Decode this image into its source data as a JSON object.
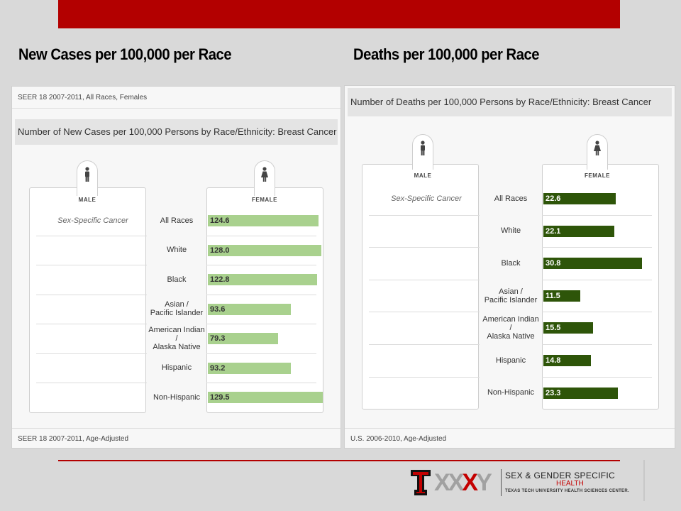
{
  "titles": {
    "left": "New Cases per 100,000 per Race",
    "right": "Deaths per 100,000  per Race"
  },
  "left_panel": {
    "source_top": "SEER 18 2007-2011, All Races, Females",
    "chart_title": "Number of New Cases per 100,000 Persons by Race/Ethnicity: Breast Cancer",
    "source_bottom": "SEER 18 2007-2011, Age-Adjusted",
    "male_label": "MALE",
    "female_label": "FEMALE",
    "sex_specific": "Sex-Specific Cancer"
  },
  "right_panel": {
    "chart_title": "Number of Deaths per 100,000 Persons by Race/Ethnicity: Breast Cancer",
    "source_bottom": "U.S. 2006-2010, Age-Adjusted",
    "male_label": "MALE",
    "female_label": "FEMALE",
    "sex_specific": "Sex-Specific Cancer"
  },
  "chart_data": [
    {
      "type": "bar",
      "orientation": "horizontal",
      "title": "Number of New Cases per 100,000 Persons by Race/Ethnicity: Breast Cancer",
      "categories": [
        "All Races",
        "White",
        "Black",
        "Asian /\nPacific Islander",
        "American Indian /\nAlaska Native",
        "Hispanic",
        "Non-Hispanic"
      ],
      "series": [
        {
          "name": "FEMALE",
          "values": [
            124.6,
            128.0,
            122.8,
            93.6,
            79.3,
            93.2,
            129.5
          ]
        }
      ],
      "value_labels": [
        "124.6",
        "128.0",
        "122.8",
        "93.6",
        "79.3",
        "93.2",
        "129.5"
      ],
      "color": "#a9d18e",
      "xlim": [
        0,
        140
      ]
    },
    {
      "type": "bar",
      "orientation": "horizontal",
      "title": "Number of Deaths per 100,000 Persons by Race/Ethnicity: Breast Cancer",
      "categories": [
        "All Races",
        "White",
        "Black",
        "Asian /\nPacific Islander",
        "American Indian /\nAlaska Native",
        "Hispanic",
        "Non-Hispanic"
      ],
      "series": [
        {
          "name": "FEMALE",
          "values": [
            22.6,
            22.1,
            30.8,
            11.5,
            15.5,
            14.8,
            23.3
          ]
        }
      ],
      "value_labels": [
        "22.6",
        "22.1",
        "30.8",
        "11.5",
        "15.5",
        "14.8",
        "23.3"
      ],
      "color": "#2e5509",
      "xlim": [
        0,
        33
      ]
    }
  ],
  "logo": {
    "xxxy_text": "XXXY",
    "line1": "SEX & GENDER SPECIFIC",
    "line2": "HEALTH",
    "line3": "TEXAS TECH UNIVERSITY HEALTH SCIENCES CENTER."
  }
}
